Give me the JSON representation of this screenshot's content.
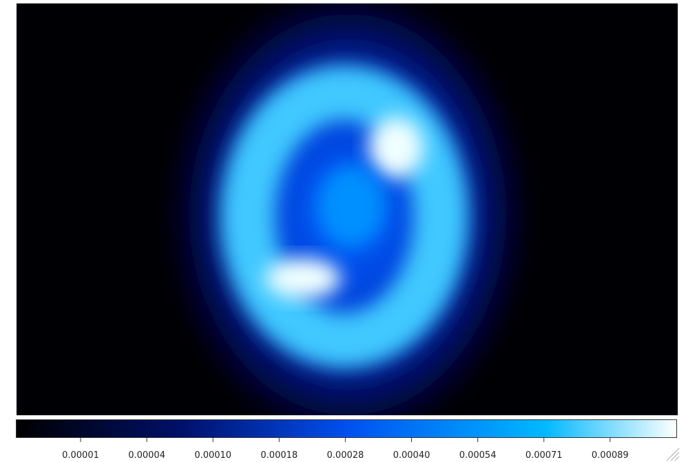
{
  "colorbar": {
    "ticks": [
      "0.00001",
      "0.00004",
      "0.00010",
      "0.00018",
      "0.00028",
      "0.00040",
      "0.00054",
      "0.00071",
      "0.00089"
    ]
  }
}
